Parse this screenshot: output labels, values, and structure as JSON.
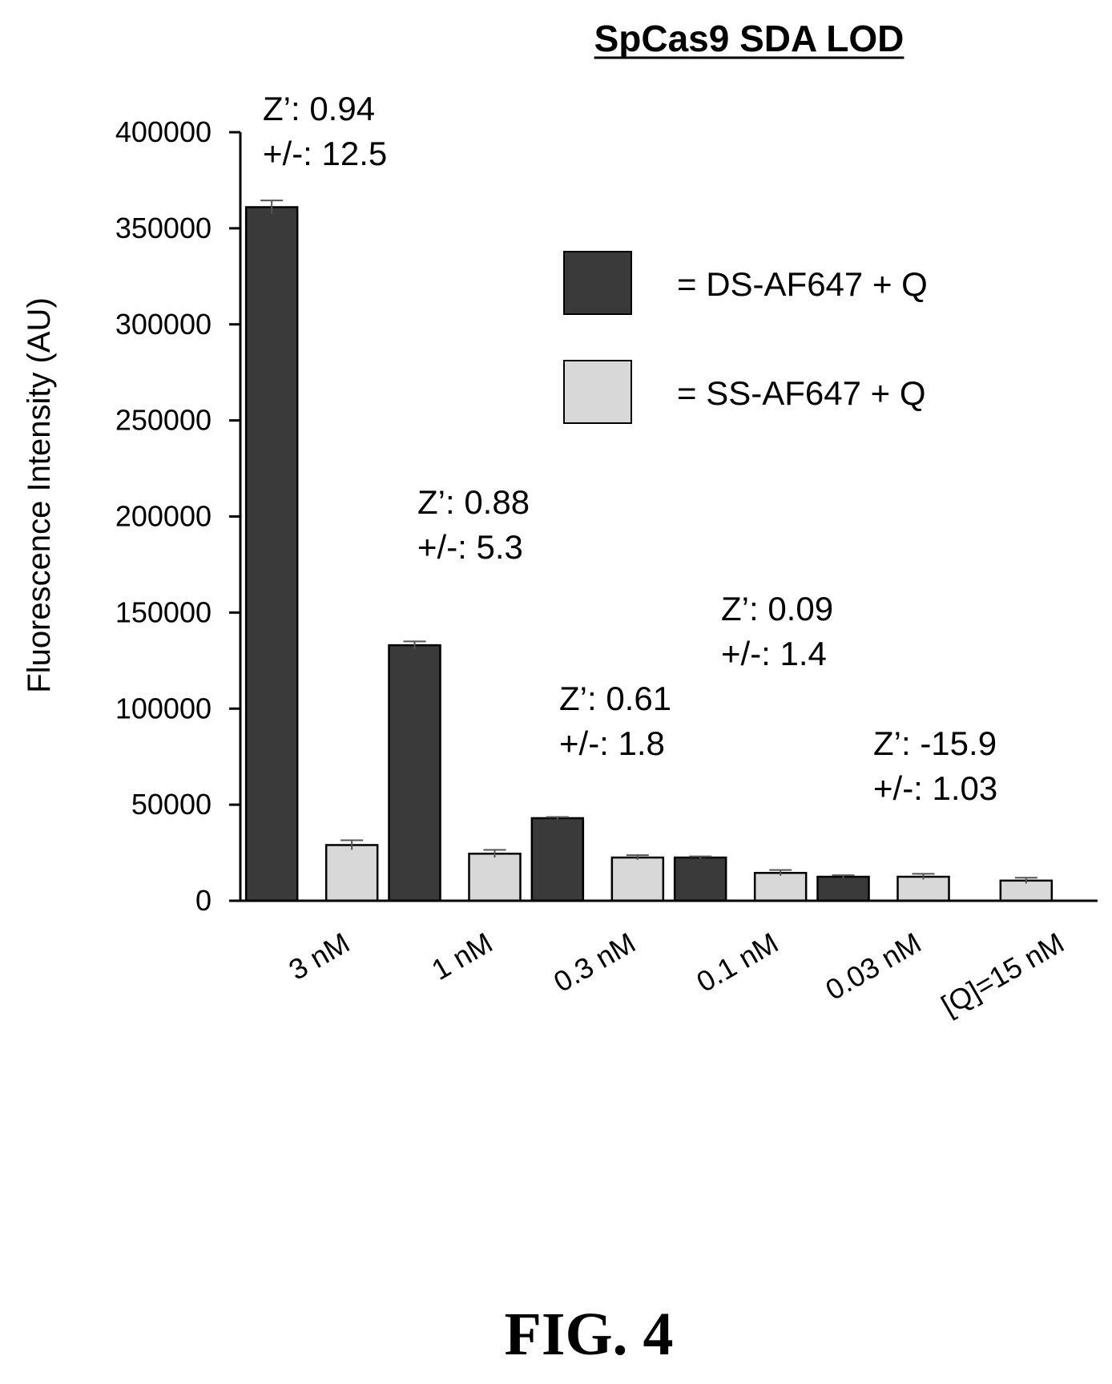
{
  "chart_data": {
    "type": "bar",
    "title": "SpCas9 SDA LOD",
    "ylabel": "Fluorescence Intensity (AU)",
    "xlabel": "",
    "ylim": [
      0,
      400000
    ],
    "yticks": [
      "0",
      "50000",
      "100000",
      "150000",
      "200000",
      "250000",
      "300000",
      "350000",
      "400000"
    ],
    "ytick_values": [
      0,
      50000,
      100000,
      150000,
      200000,
      250000,
      300000,
      350000,
      400000
    ],
    "categories": [
      "3 nM",
      "1 nM",
      "0.3 nM",
      "0.1 nM",
      "0.03 nM",
      "[Q]=15 nM"
    ],
    "series": [
      {
        "name": "= DS-AF647 + Q",
        "color": "#3a3a3a",
        "values": [
          361000,
          133000,
          43000,
          22500,
          12500,
          null
        ],
        "errors": [
          3500,
          2000,
          600,
          600,
          800,
          null
        ]
      },
      {
        "name": "= SS-AF647 + Q",
        "color": "#d8d8d8",
        "values": [
          29000,
          24500,
          22500,
          14500,
          12500,
          10500
        ],
        "errors": [
          2500,
          2000,
          1200,
          1500,
          1500,
          1500
        ]
      }
    ],
    "legend_position": "top-right",
    "grid": false,
    "annotations": [
      {
        "category": "3 nM",
        "line1": "Z’: 0.94",
        "line2": "+/-: 12.5"
      },
      {
        "category": "1 nM",
        "line1": "Z’: 0.88",
        "line2": "+/-: 5.3"
      },
      {
        "category": "0.3 nM",
        "line1": "Z’: 0.61",
        "line2": "+/-: 1.8"
      },
      {
        "category": "0.1 nM",
        "line1": "Z’: 0.09",
        "line2": "+/-: 1.4"
      },
      {
        "category": "0.03 nM",
        "line1": "Z’: -15.9",
        "line2": "+/-: 1.03"
      }
    ]
  },
  "figure_label": "FIG. 4"
}
